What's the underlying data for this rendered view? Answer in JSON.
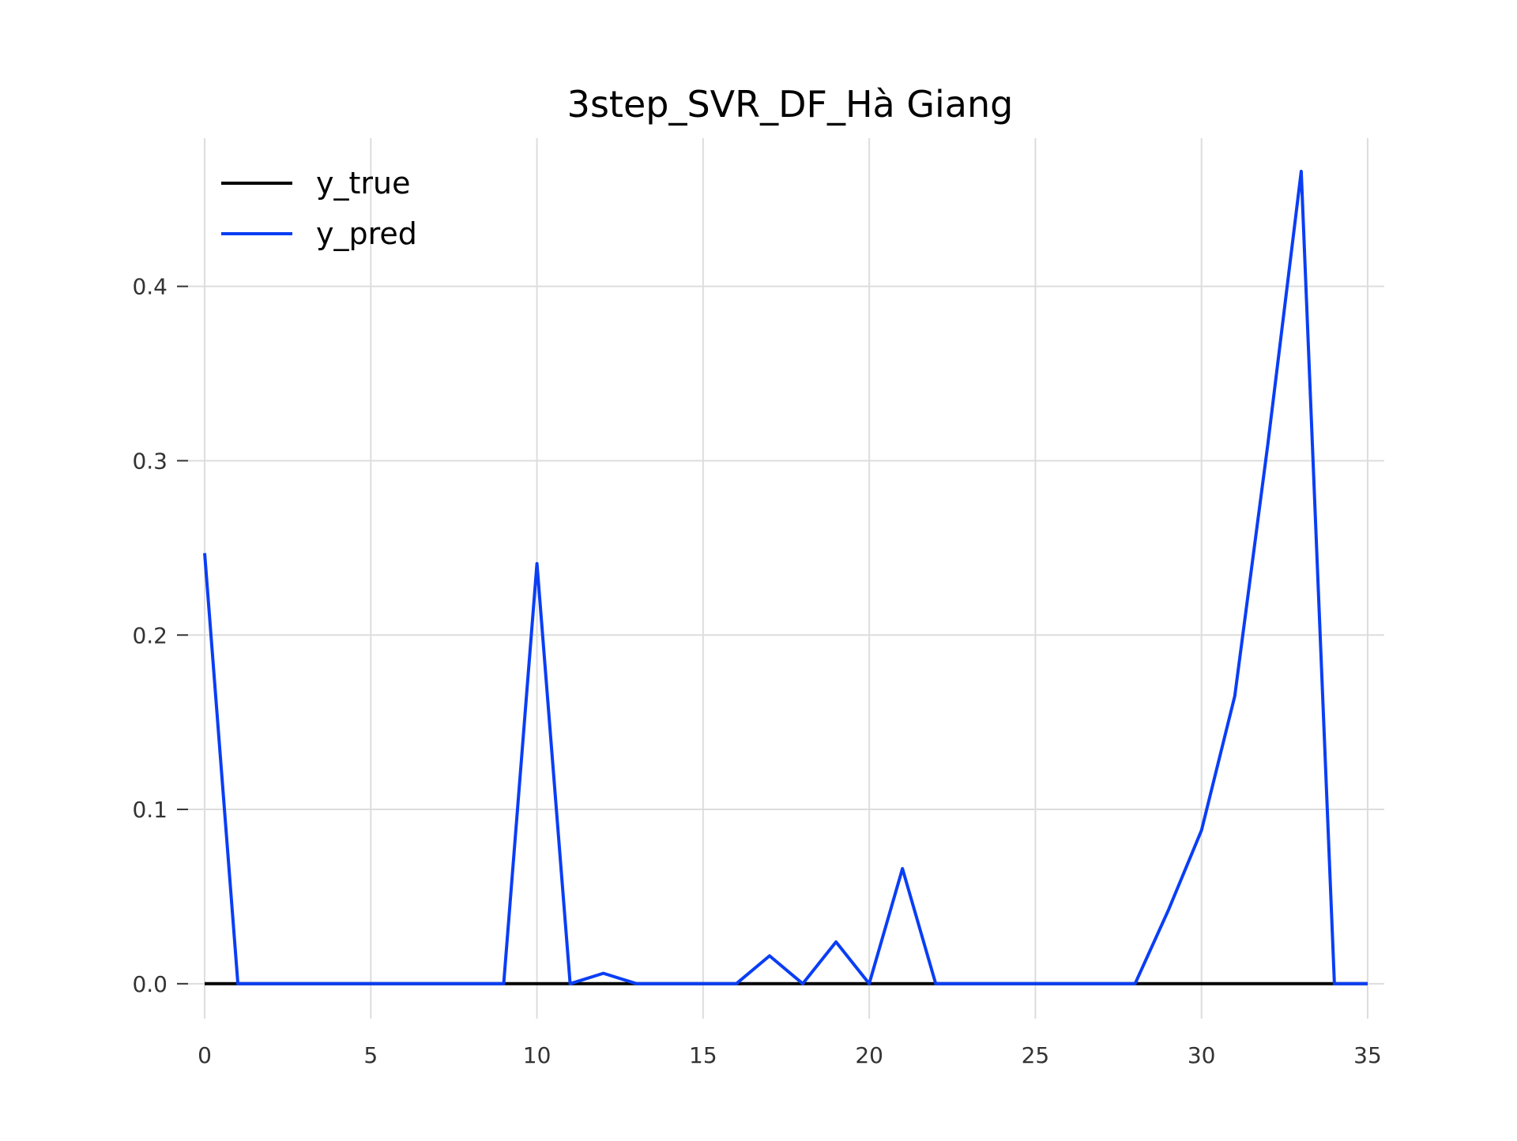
{
  "chart_data": {
    "type": "line",
    "title": "3step_SVR_DF_Hà Giang",
    "xlabel": "",
    "ylabel": "",
    "xlim": [
      -0.5,
      35.5
    ],
    "ylim": [
      -0.02,
      0.485
    ],
    "xticks": [
      0,
      5,
      10,
      15,
      20,
      25,
      30,
      35
    ],
    "xtick_labels": [
      "0",
      "5",
      "10",
      "15",
      "20",
      "25",
      "30",
      "35"
    ],
    "yticks": [
      0.0,
      0.1,
      0.2,
      0.3,
      0.4
    ],
    "ytick_labels": [
      "0.0",
      "0.1",
      "0.2",
      "0.3",
      "0.4"
    ],
    "grid": true,
    "legend_position": "top-left",
    "x": [
      0,
      1,
      2,
      3,
      4,
      5,
      6,
      7,
      8,
      9,
      10,
      11,
      12,
      13,
      14,
      15,
      16,
      17,
      18,
      19,
      20,
      21,
      22,
      23,
      24,
      25,
      26,
      27,
      28,
      29,
      30,
      31,
      32,
      33,
      34,
      35
    ],
    "series": [
      {
        "name": "y_true",
        "color": "#000000",
        "values": [
          0,
          0,
          0,
          0,
          0,
          0,
          0,
          0,
          0,
          0,
          0,
          0,
          0,
          0,
          0,
          0,
          0,
          0,
          0,
          0,
          0,
          0,
          0,
          0,
          0,
          0,
          0,
          0,
          0,
          0,
          0,
          0,
          0,
          0,
          0,
          0
        ]
      },
      {
        "name": "y_pred",
        "color": "#0a3ef5",
        "values": [
          0.247,
          0,
          0,
          0,
          0,
          0,
          0,
          0,
          0,
          0,
          0.241,
          0,
          0.006,
          0,
          0,
          0,
          0,
          0.016,
          0,
          0.024,
          0,
          0.066,
          0,
          0,
          0,
          0,
          0,
          0,
          0,
          0.042,
          0.088,
          0.165,
          0.31,
          0.466,
          0,
          0
        ]
      }
    ]
  }
}
